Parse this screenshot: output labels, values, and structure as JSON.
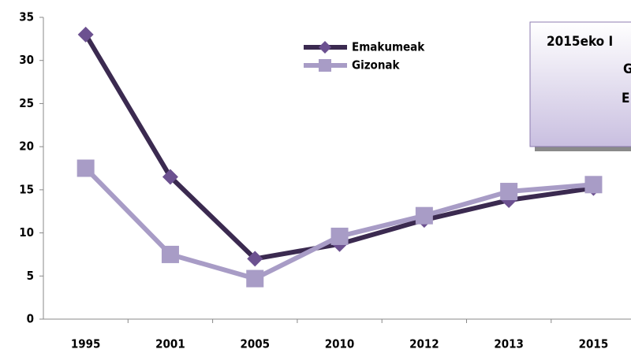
{
  "chart_data": {
    "type": "line",
    "categories": [
      "1995",
      "2001",
      "2005",
      "2010",
      "2012",
      "2013",
      "2015"
    ],
    "series": [
      {
        "name": "Emakumeak",
        "color": "#3b2a50",
        "marker_color": "#6c5190",
        "marker": "diamond",
        "values": [
          33,
          16.5,
          7,
          8.7,
          11.5,
          13.8,
          15.2
        ]
      },
      {
        "name": "Gizonak",
        "color": "#a89cc6",
        "marker_color": "#a89cc6",
        "marker": "square",
        "values": [
          17.5,
          7.5,
          4.7,
          9.6,
          12,
          14.8,
          15.6
        ]
      }
    ],
    "ylim": [
      0,
      35
    ],
    "yticks": [
      0,
      5,
      10,
      15,
      20,
      25,
      30,
      35
    ],
    "annotation": [
      "2015eko I",
      "G",
      "E"
    ]
  }
}
